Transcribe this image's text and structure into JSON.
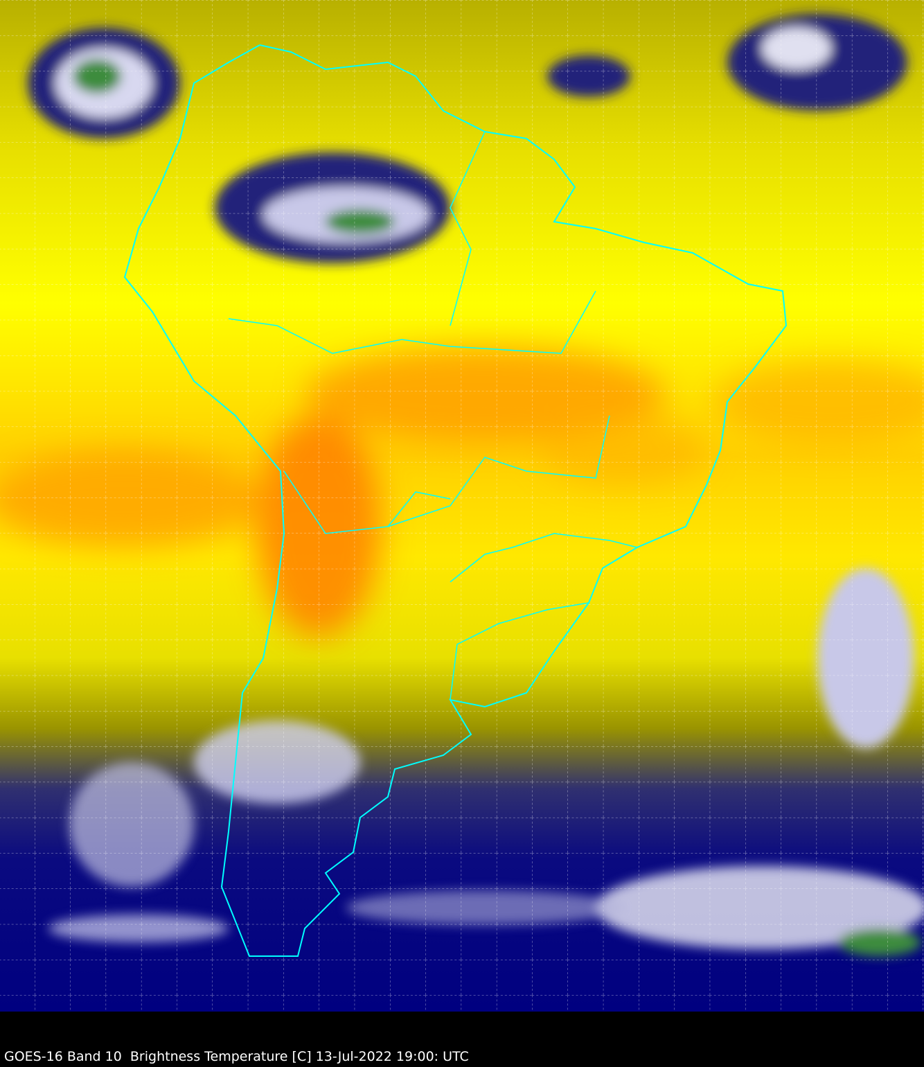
{
  "caption": "GOES-16 Band 10  Brightness Temperature [C] 13-Jul-2022 19:00: UTC",
  "image": {
    "satellite": "GOES-16",
    "band": "10",
    "region": "South America",
    "grid": true,
    "colors": {
      "coastline": "#00ffff",
      "grid": "#ffffff",
      "warm": "#ff8c00",
      "mid": "#ffff00",
      "cool": "#000080",
      "cold": "#ffffff",
      "coldest": "#3c8c3c",
      "background": "#000000"
    }
  }
}
